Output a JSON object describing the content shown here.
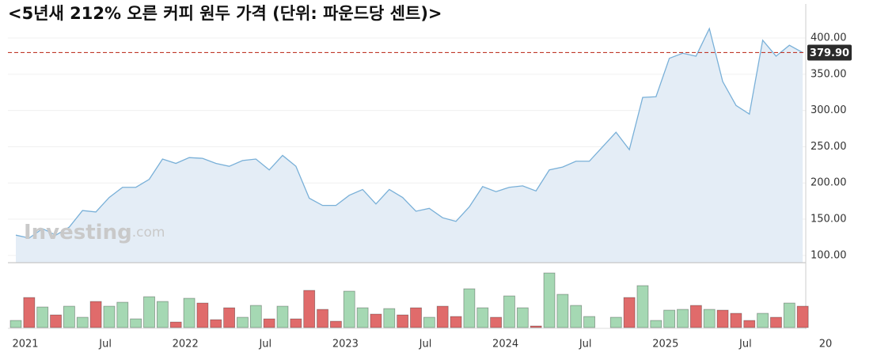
{
  "chart_data": {
    "type": "line",
    "title": "<5년새 212% 오른 커피 원두 가격 (단위: 파운드당 센트)>",
    "watermark": [
      "Investing",
      ".com"
    ],
    "categories": [
      "2021",
      null,
      null,
      null,
      null,
      null,
      "Jul",
      null,
      null,
      null,
      null,
      null,
      "2022",
      null,
      null,
      null,
      null,
      null,
      "Jul",
      null,
      null,
      null,
      null,
      null,
      "2023",
      null,
      null,
      null,
      null,
      null,
      "Jul",
      null,
      null,
      null,
      null,
      null,
      "2024",
      null,
      null,
      null,
      null,
      null,
      "Jul",
      null,
      null,
      null,
      null,
      null,
      "2025",
      null,
      null,
      null,
      null,
      null,
      "Jul",
      null,
      null,
      null,
      null,
      null,
      "20"
    ],
    "series": [
      {
        "color": "#79b0d8",
        "fill": "#e4edf6",
        "values": [
          128,
          124,
          137,
          128,
          139,
          162,
          160,
          180,
          194,
          194,
          205,
          233,
          227,
          235,
          234,
          227,
          223,
          231,
          233,
          218,
          238,
          223,
          179,
          169,
          169,
          183,
          191,
          171,
          191,
          180,
          161,
          165,
          152,
          147,
          167,
          195,
          188,
          194,
          196,
          189,
          218,
          222,
          230,
          230,
          250,
          270,
          246,
          318,
          319,
          372,
          379,
          375,
          413,
          340,
          307,
          295,
          397,
          375,
          390,
          379.9,
          null
        ]
      }
    ],
    "ylim": [
      90,
      447
    ],
    "yticks": [
      {
        "value": 100,
        "label": "100.00"
      },
      {
        "value": 150,
        "label": "150.00"
      },
      {
        "value": 200,
        "label": "200.00"
      },
      {
        "value": 250,
        "label": "250.00"
      },
      {
        "value": 300,
        "label": "300.00"
      },
      {
        "value": 350,
        "label": "350.00"
      },
      {
        "value": 400,
        "label": "400.00"
      }
    ],
    "grid": true,
    "reference_line": {
      "value": 379.9,
      "label": "379.90",
      "color": "#c0392b"
    },
    "volume": {
      "ylim": [
        0,
        80
      ],
      "values": [
        9,
        38,
        26,
        16,
        27,
        13,
        33,
        27,
        32,
        11,
        39,
        33,
        7,
        37,
        31,
        10,
        25,
        13,
        28,
        11,
        27,
        11,
        47,
        23,
        8,
        46,
        25,
        17,
        24,
        16,
        25,
        13,
        27,
        14,
        49,
        25,
        13,
        40,
        25,
        2,
        69,
        42,
        28,
        14,
        0,
        13,
        38,
        53,
        9,
        22,
        23,
        28,
        23,
        22,
        18,
        9,
        18,
        13,
        31,
        27,
        null
      ],
      "colors": [
        "#a5d8b3",
        "#e06b6b",
        "#a5d8b3",
        "#e06b6b",
        "#a5d8b3",
        "#a5d8b3",
        "#e06b6b",
        "#a5d8b3",
        "#a5d8b3",
        "#a5d8b3",
        "#a5d8b3",
        "#a5d8b3",
        "#e06b6b",
        "#a5d8b3",
        "#e06b6b",
        "#e06b6b",
        "#e06b6b",
        "#a5d8b3",
        "#a5d8b3",
        "#e06b6b",
        "#a5d8b3",
        "#e06b6b",
        "#e06b6b",
        "#e06b6b",
        "#e06b6b",
        "#a5d8b3",
        "#a5d8b3",
        "#e06b6b",
        "#a5d8b3",
        "#e06b6b",
        "#e06b6b",
        "#a5d8b3",
        "#e06b6b",
        "#e06b6b",
        "#a5d8b3",
        "#a5d8b3",
        "#e06b6b",
        "#a5d8b3",
        "#a5d8b3",
        "#e06b6b",
        "#a5d8b3",
        "#a5d8b3",
        "#a5d8b3",
        "#a5d8b3",
        "#a5d8b3",
        "#a5d8b3",
        "#e06b6b",
        "#a5d8b3",
        "#a5d8b3",
        "#a5d8b3",
        "#a5d8b3",
        "#e06b6b",
        "#a5d8b3",
        "#e06b6b",
        "#e06b6b",
        "#e06b6b",
        "#a5d8b3",
        "#e06b6b",
        "#a5d8b3",
        "#e06b6b",
        null
      ]
    }
  }
}
